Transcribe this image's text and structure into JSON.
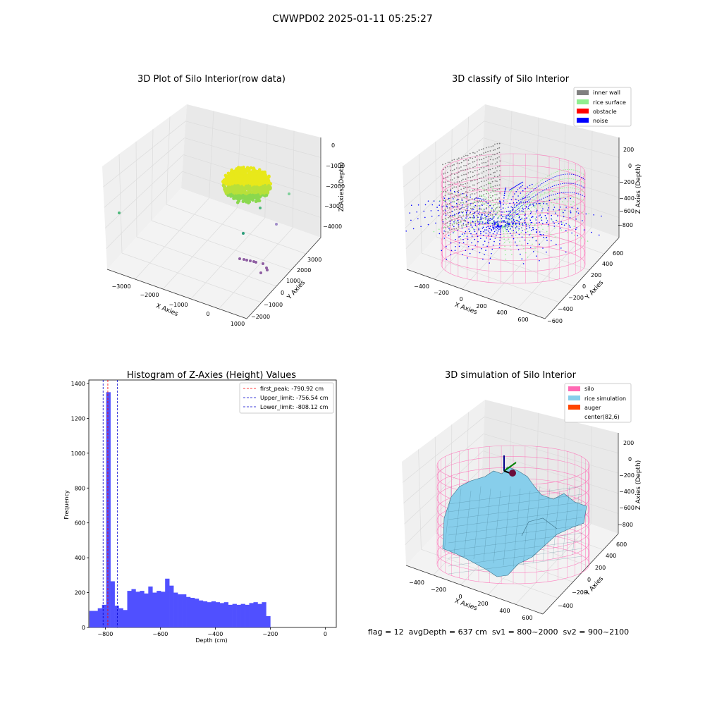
{
  "figure_title": "CWWPD02 2025-01-11 05:25:27",
  "footer_text": "flag = 12  avgDepth = 637 cm  sv1 = 800~2000  sv2 = 900~2100",
  "colors": {
    "inner_wall": "#808080",
    "rice_surface": "#90ee90",
    "obstacle": "#ff0000",
    "noise": "#0000ff",
    "silo": "#ff69b4",
    "rice_simulation": "#87ceeb",
    "auger": "#ff4500",
    "hist_bar": "#5050ff",
    "first_peak_line": "#ff0000",
    "limit_line": "#0000cc",
    "raw_surface": "#d8e81a",
    "raw_outlier": "#8e5ea2"
  },
  "chart_data": [
    {
      "type": "scatter",
      "title": "3D Plot of Silo Interior(row data)",
      "xlabel": "X Axies",
      "ylabel": "Y Axies",
      "zlabel": "Z Axies (Depth)",
      "x_ticks": [
        "−3000",
        "−2000",
        "−1000",
        "0",
        "1000"
      ],
      "y_ticks": [
        "−2000",
        "−1000",
        "0",
        "1000",
        "2000",
        "3000"
      ],
      "z_ticks": [
        "0",
        "−1000",
        "−2000",
        "−3000",
        "−4000"
      ],
      "grid": true
    },
    {
      "type": "scatter",
      "title": "3D classify of Silo Interior",
      "xlabel": "X Axies",
      "ylabel": "Y Axies",
      "zlabel": "Z Axies (Depth)",
      "x_ticks": [
        "−400",
        "−200",
        "0",
        "200",
        "400",
        "600"
      ],
      "y_ticks": [
        "−600",
        "−400",
        "−200",
        "0",
        "200",
        "400",
        "600"
      ],
      "z_ticks": [
        "200",
        "0",
        "−200",
        "−400",
        "−600",
        "−800"
      ],
      "legend": [
        "inner wall",
        "rice surface",
        "obstacle",
        "noise"
      ],
      "legend_loc": "top-right",
      "grid": true
    },
    {
      "type": "bar",
      "title": "Histogram of Z-Axies (Height) Values",
      "xlabel": "Depth (cm)",
      "ylabel": "Frequency",
      "xlim": [
        -860,
        40
      ],
      "ylim": [
        0,
        1420
      ],
      "x_ticks": [
        -800,
        -600,
        -400,
        -200,
        0
      ],
      "x_tick_labels": [
        "−800",
        "−600",
        "−400",
        "−200",
        "0"
      ],
      "y_ticks": [
        0,
        200,
        400,
        600,
        800,
        1000,
        1200,
        1400
      ],
      "bin_start": -858,
      "bin_width": 15.3,
      "values": [
        95,
        95,
        110,
        130,
        1350,
        265,
        125,
        110,
        100,
        210,
        220,
        205,
        210,
        195,
        235,
        200,
        210,
        205,
        280,
        240,
        200,
        190,
        190,
        175,
        170,
        165,
        155,
        150,
        145,
        150,
        145,
        140,
        145,
        130,
        135,
        130,
        135,
        130,
        140,
        145,
        135,
        145,
        65
      ],
      "vlines": [
        {
          "label": "first_peak: -790.92 cm",
          "x": -790.92,
          "color": "#ff0000"
        },
        {
          "label": "Upper_limit: -756.54 cm",
          "x": -756.54,
          "color": "#0000cc"
        },
        {
          "label": "Lower_limit: -808.12 cm",
          "x": -808.12,
          "color": "#0000cc"
        }
      ],
      "legend_loc": "top-right"
    },
    {
      "type": "area",
      "title": "3D simulation of Silo Interior",
      "xlabel": "X Axies",
      "ylabel": "Y Axies",
      "zlabel": "Z Axies (Depth)",
      "x_ticks": [
        "−400",
        "−200",
        "0",
        "200",
        "400",
        "600"
      ],
      "y_ticks": [
        "−400",
        "−200",
        "0",
        "200",
        "400",
        "600"
      ],
      "z_ticks": [
        "200",
        "0",
        "−200",
        "−400",
        "−600",
        "−800"
      ],
      "legend": [
        "silo",
        "rice simulation",
        "auger",
        "center(82,6)"
      ],
      "legend_loc": "top-right",
      "grid": true
    }
  ]
}
